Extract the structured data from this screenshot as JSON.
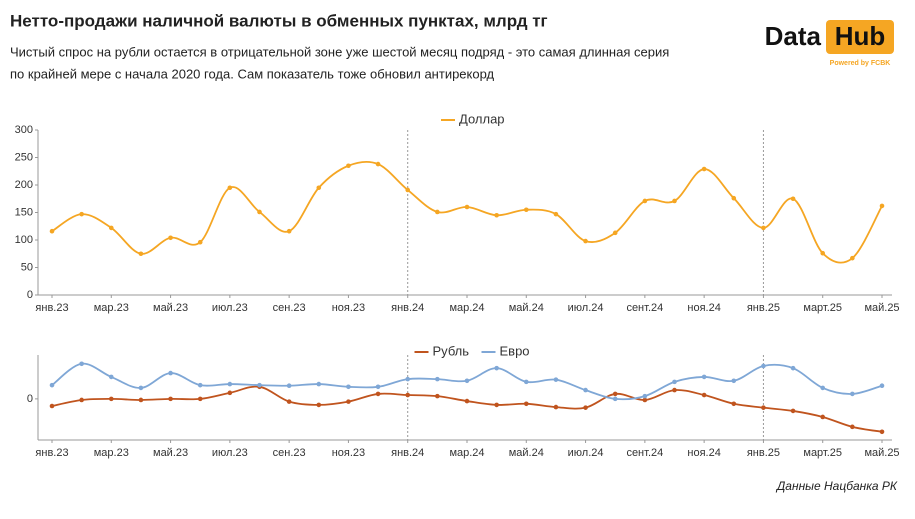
{
  "logo": {
    "left": "Data",
    "right": "Hub",
    "tagline": "Powered by FCBK"
  },
  "source": "Данные Нацбанка РК",
  "chart_data": [
    {
      "type": "line",
      "title": "Нетто-продажи наличной валюты в обменных пунктах, млрд тг",
      "subtitle": [
        "Чистый спрос на рубли остается в отрицательной зоне уже шестой месяц подряд - это самая длинная серия",
        "по крайней мере с начала 2020 года. Сам показатель тоже обновил антирекорд"
      ],
      "categories": [
        "янв.23",
        null,
        "мар.23",
        null,
        "май.23",
        null,
        "июл.23",
        null,
        "сен.23",
        null,
        "ноя.23",
        null,
        "янв.24",
        null,
        "мар.24",
        null,
        "май.24",
        null,
        "июл.24",
        null,
        "сент.24",
        null,
        "ноя.24",
        null,
        "янв.25",
        null,
        "март.25",
        null,
        "май.25"
      ],
      "series": [
        {
          "name": "Доллар",
          "color": "#f5a623",
          "values": [
            116,
            147,
            122,
            75,
            104,
            96,
            195,
            151,
            116,
            195,
            235,
            238,
            191,
            151,
            160,
            145,
            155,
            147,
            98,
            113,
            171,
            171,
            229,
            176,
            122,
            175,
            76,
            67,
            162
          ]
        }
      ],
      "ylim": [
        0,
        300
      ],
      "yticks": [
        0,
        50,
        100,
        150,
        200,
        250,
        300
      ],
      "legend": "top"
    },
    {
      "type": "line",
      "categories": [
        "янв.23",
        null,
        "мар.23",
        null,
        "май.23",
        null,
        "июл.23",
        null,
        "сен.23",
        null,
        "ноя.23",
        null,
        "янв.24",
        null,
        "мар.24",
        null,
        "май.24",
        null,
        "июл.24",
        null,
        "сент.24",
        null,
        "ноя.24",
        null,
        "янв.25",
        null,
        "март.25",
        null,
        "май.25"
      ],
      "series": [
        {
          "name": "Рубль",
          "color": "#c0541e",
          "values": [
            -13,
            -2,
            0,
            -2,
            0,
            0,
            11,
            22,
            -5,
            -11,
            -5,
            9,
            7,
            5,
            -4,
            -11,
            -9,
            -15,
            -16,
            9,
            -2,
            16,
            7,
            -9,
            -16,
            -22,
            -33,
            -51,
            -60
          ]
        },
        {
          "name": "Евро",
          "color": "#7fa7d6",
          "values": [
            25,
            64,
            40,
            20,
            47,
            25,
            27,
            25,
            24,
            27,
            22,
            22,
            36,
            36,
            33,
            56,
            31,
            35,
            16,
            0,
            5,
            31,
            40,
            33,
            60,
            56,
            20,
            9,
            24
          ]
        }
      ],
      "ylim": [
        -75,
        80
      ],
      "yticks": [
        0
      ],
      "legend": "top"
    }
  ]
}
